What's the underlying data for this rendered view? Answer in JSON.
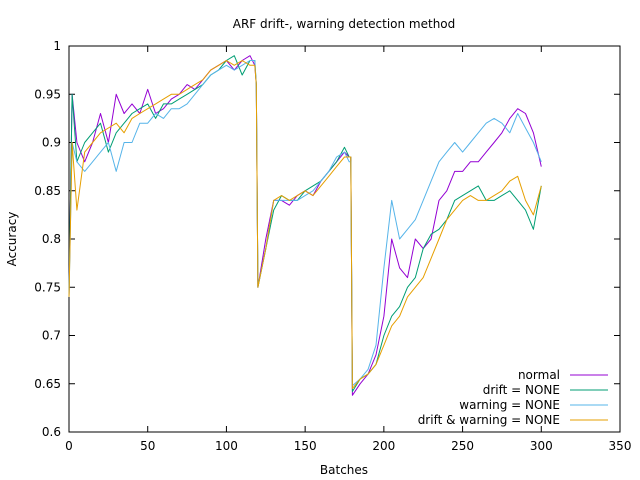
{
  "chart_data": {
    "type": "line",
    "title": "ARF drift-, warning detection method",
    "xlabel": "Batches",
    "ylabel": "Accuracy",
    "xlim": [
      0,
      350
    ],
    "ylim": [
      0.6,
      1.0
    ],
    "xticks": [
      0,
      50,
      100,
      150,
      200,
      250,
      300,
      350
    ],
    "yticks": [
      0.6,
      0.65,
      0.7,
      0.75,
      0.8,
      0.85,
      0.9,
      0.95,
      1.0
    ],
    "ytick_labels": [
      "0.6",
      "0.65",
      "0.7",
      "0.75",
      "0.8",
      "0.85",
      "0.9",
      "0.95",
      "1"
    ],
    "grid": false,
    "legend_position": "bottom-right",
    "x": [
      0,
      2,
      5,
      10,
      15,
      20,
      25,
      30,
      35,
      40,
      45,
      50,
      55,
      60,
      65,
      70,
      75,
      80,
      85,
      90,
      95,
      100,
      105,
      110,
      115,
      118,
      119,
      120,
      125,
      130,
      135,
      140,
      145,
      150,
      155,
      160,
      165,
      170,
      175,
      178,
      179,
      180,
      185,
      190,
      195,
      200,
      205,
      210,
      215,
      220,
      225,
      230,
      235,
      240,
      245,
      250,
      255,
      260,
      265,
      270,
      275,
      280,
      285,
      290,
      295,
      300
    ],
    "series": [
      {
        "name": "normal",
        "color": "#9400d3",
        "values": [
          0.74,
          0.95,
          0.9,
          0.88,
          0.9,
          0.93,
          0.9,
          0.95,
          0.93,
          0.94,
          0.93,
          0.955,
          0.93,
          0.935,
          0.945,
          0.95,
          0.96,
          0.955,
          0.965,
          0.975,
          0.98,
          0.985,
          0.975,
          0.985,
          0.99,
          0.98,
          0.96,
          0.75,
          0.8,
          0.84,
          0.84,
          0.835,
          0.845,
          0.85,
          0.845,
          0.86,
          0.87,
          0.88,
          0.89,
          0.885,
          0.885,
          0.638,
          0.65,
          0.66,
          0.68,
          0.72,
          0.8,
          0.77,
          0.76,
          0.8,
          0.79,
          0.8,
          0.84,
          0.85,
          0.87,
          0.87,
          0.88,
          0.88,
          0.89,
          0.9,
          0.91,
          0.925,
          0.935,
          0.93,
          0.91,
          0.875
        ]
      },
      {
        "name": "drift = NONE",
        "color": "#009e73",
        "values": [
          0.74,
          0.95,
          0.88,
          0.9,
          0.91,
          0.92,
          0.89,
          0.91,
          0.92,
          0.93,
          0.935,
          0.94,
          0.925,
          0.94,
          0.94,
          0.945,
          0.95,
          0.955,
          0.96,
          0.97,
          0.975,
          0.985,
          0.99,
          0.97,
          0.985,
          0.985,
          0.96,
          0.75,
          0.79,
          0.83,
          0.845,
          0.84,
          0.84,
          0.85,
          0.855,
          0.86,
          0.87,
          0.88,
          0.895,
          0.885,
          0.885,
          0.642,
          0.655,
          0.66,
          0.67,
          0.7,
          0.72,
          0.73,
          0.75,
          0.76,
          0.79,
          0.805,
          0.81,
          0.82,
          0.84,
          0.845,
          0.85,
          0.855,
          0.84,
          0.84,
          0.845,
          0.85,
          0.84,
          0.83,
          0.81,
          0.855
        ]
      },
      {
        "name": "warning = NONE",
        "color": "#56b4e9",
        "values": [
          0.74,
          0.9,
          0.88,
          0.87,
          0.88,
          0.89,
          0.9,
          0.87,
          0.9,
          0.9,
          0.92,
          0.92,
          0.93,
          0.925,
          0.935,
          0.935,
          0.94,
          0.95,
          0.96,
          0.97,
          0.975,
          0.98,
          0.975,
          0.98,
          0.985,
          0.985,
          0.96,
          0.75,
          0.79,
          0.84,
          0.84,
          0.84,
          0.84,
          0.845,
          0.85,
          0.86,
          0.87,
          0.885,
          0.89,
          0.88,
          0.88,
          0.648,
          0.655,
          0.665,
          0.69,
          0.77,
          0.84,
          0.8,
          0.81,
          0.82,
          0.84,
          0.86,
          0.88,
          0.89,
          0.9,
          0.89,
          0.9,
          0.91,
          0.92,
          0.925,
          0.92,
          0.91,
          0.93,
          0.915,
          0.9,
          0.88
        ]
      },
      {
        "name": "drift & warning = NONE",
        "color": "#e69f00",
        "values": [
          0.74,
          0.9,
          0.83,
          0.89,
          0.9,
          0.91,
          0.915,
          0.92,
          0.91,
          0.925,
          0.93,
          0.935,
          0.94,
          0.945,
          0.95,
          0.95,
          0.955,
          0.96,
          0.965,
          0.975,
          0.98,
          0.985,
          0.98,
          0.985,
          0.98,
          0.98,
          0.96,
          0.75,
          0.79,
          0.84,
          0.845,
          0.84,
          0.845,
          0.85,
          0.845,
          0.855,
          0.865,
          0.875,
          0.885,
          0.885,
          0.885,
          0.645,
          0.655,
          0.66,
          0.67,
          0.69,
          0.71,
          0.72,
          0.74,
          0.75,
          0.76,
          0.78,
          0.8,
          0.82,
          0.83,
          0.84,
          0.845,
          0.84,
          0.84,
          0.845,
          0.85,
          0.86,
          0.865,
          0.84,
          0.825,
          0.855
        ]
      }
    ]
  }
}
